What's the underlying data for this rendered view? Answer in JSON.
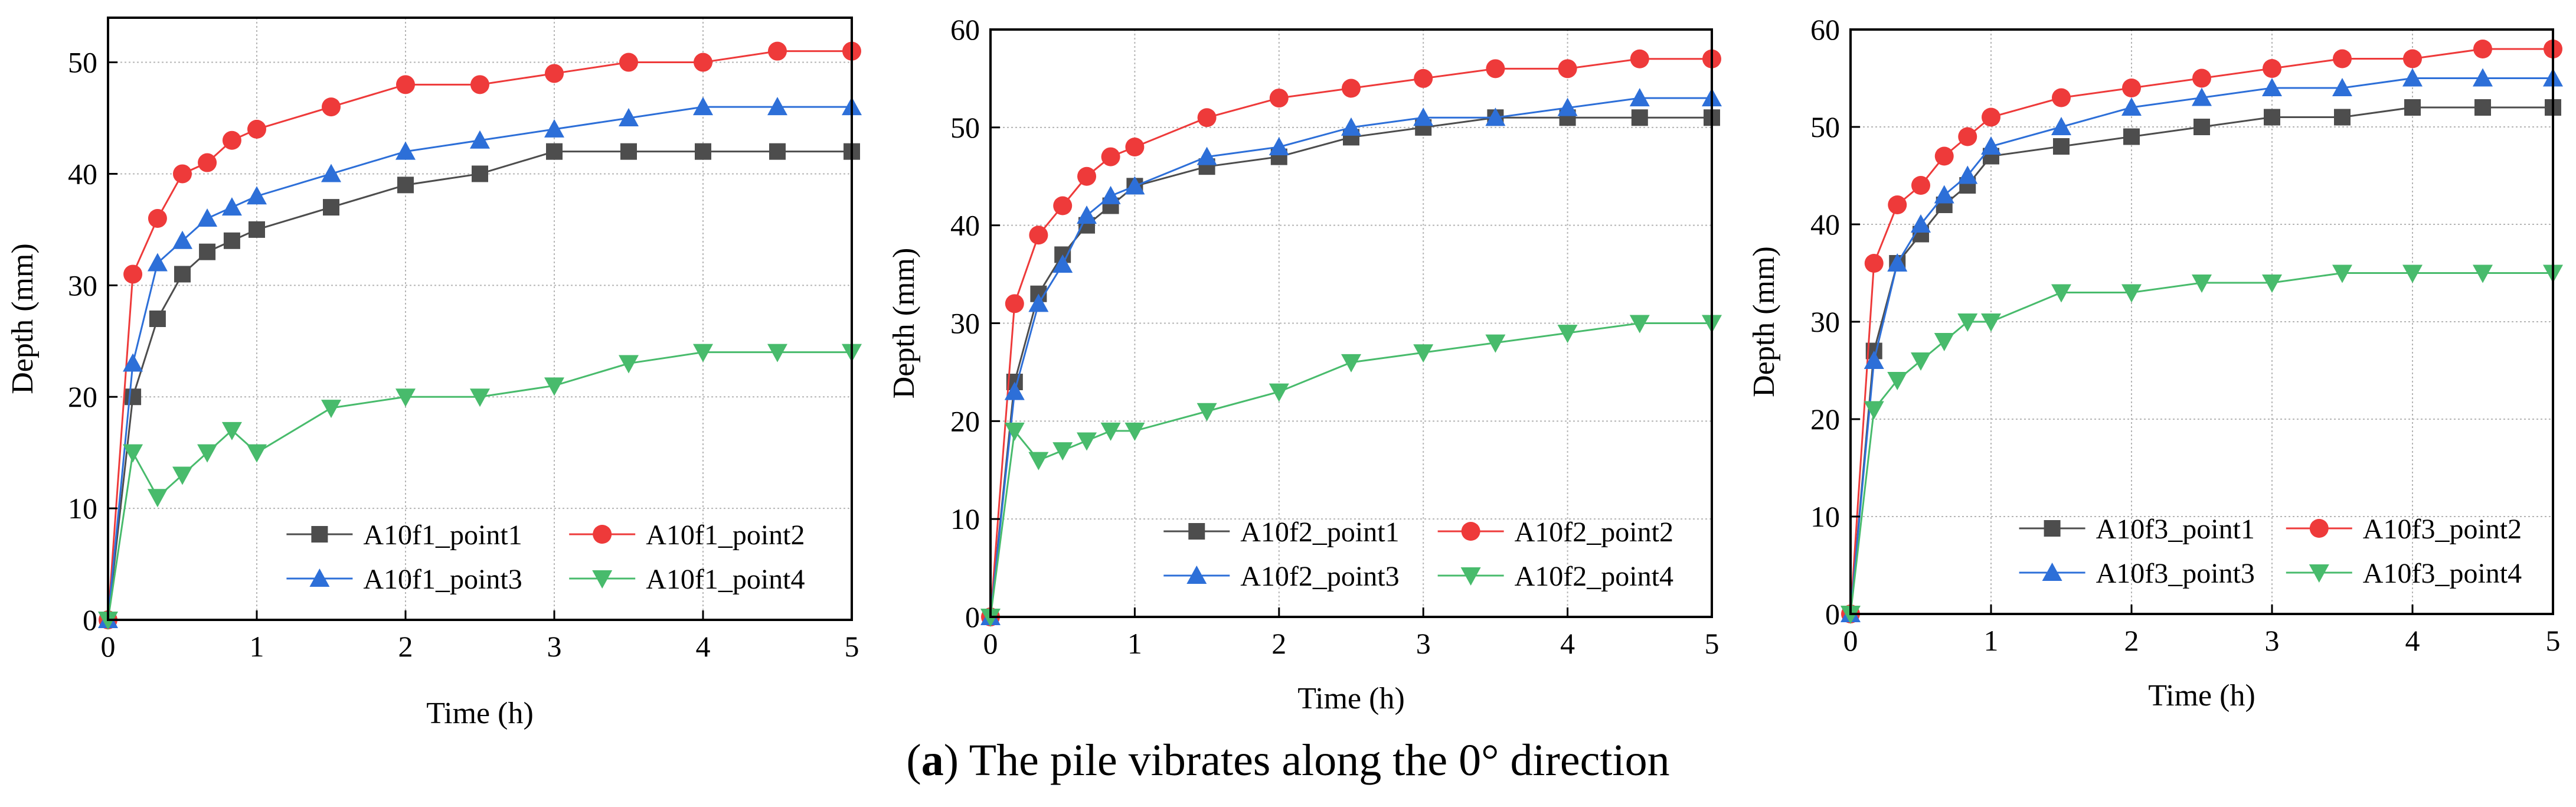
{
  "caption": {
    "label": "a",
    "text": "The pile vibrates along the 0° direction"
  },
  "colors": {
    "point1": "#4d4d4d",
    "point2": "#ee3a3a",
    "point3": "#2d6fd8",
    "point4": "#48bb6c"
  },
  "chart_data": [
    {
      "type": "line",
      "xlabel": "Time (h)",
      "ylabel": "Depth (mm)",
      "xlim": [
        0,
        5
      ],
      "ylim": [
        0,
        54
      ],
      "xticks": [
        0,
        1,
        2,
        3,
        4,
        5
      ],
      "yticks": [
        0,
        10,
        20,
        30,
        40,
        50
      ],
      "grid": true,
      "legend": "bottom-right",
      "series": [
        {
          "name": "A10f1_point1",
          "marker": "square",
          "x": [
            0,
            0.167,
            0.333,
            0.5,
            0.667,
            0.833,
            1,
            1.5,
            2,
            2.5,
            3,
            3.5,
            4,
            4.5,
            5
          ],
          "y": [
            0,
            20,
            27,
            31,
            33,
            34,
            35,
            37,
            39,
            40,
            42,
            42,
            42,
            42,
            42
          ]
        },
        {
          "name": "A10f1_point2",
          "marker": "circle",
          "x": [
            0,
            0.167,
            0.333,
            0.5,
            0.667,
            0.833,
            1,
            1.5,
            2,
            2.5,
            3,
            3.5,
            4,
            4.5,
            5
          ],
          "y": [
            0,
            31,
            36,
            40,
            41,
            43,
            44,
            46,
            48,
            48,
            49,
            50,
            50,
            51,
            51
          ]
        },
        {
          "name": "A10f1_point3",
          "marker": "triangle-up",
          "x": [
            0,
            0.167,
            0.333,
            0.5,
            0.667,
            0.833,
            1,
            1.5,
            2,
            2.5,
            3,
            3.5,
            4,
            4.5,
            5
          ],
          "y": [
            0,
            23,
            32,
            34,
            36,
            37,
            38,
            40,
            42,
            43,
            44,
            45,
            46,
            46,
            46
          ]
        },
        {
          "name": "A10f1_point4",
          "marker": "triangle-down",
          "x": [
            0,
            0.167,
            0.333,
            0.5,
            0.667,
            0.833,
            1,
            1.5,
            2,
            2.5,
            3,
            3.5,
            4,
            4.5,
            5
          ],
          "y": [
            0,
            15,
            11,
            13,
            15,
            17,
            15,
            19,
            20,
            20,
            21,
            23,
            24,
            24,
            24
          ]
        }
      ]
    },
    {
      "type": "line",
      "xlabel": "Time (h)",
      "ylabel": "Depth (mm)",
      "xlim": [
        0,
        5
      ],
      "ylim": [
        0,
        60
      ],
      "xticks": [
        0,
        1,
        2,
        3,
        4,
        5
      ],
      "yticks": [
        0,
        10,
        20,
        30,
        40,
        50,
        60
      ],
      "grid": true,
      "legend": "bottom-right",
      "series": [
        {
          "name": "A10f2_point1",
          "marker": "square",
          "x": [
            0,
            0.167,
            0.333,
            0.5,
            0.667,
            0.833,
            1,
            1.5,
            2,
            2.5,
            3,
            3.5,
            4,
            4.5,
            5
          ],
          "y": [
            0,
            24,
            33,
            37,
            40,
            42,
            44,
            46,
            47,
            49,
            50,
            51,
            51,
            51,
            51
          ]
        },
        {
          "name": "A10f2_point2",
          "marker": "circle",
          "x": [
            0,
            0.167,
            0.333,
            0.5,
            0.667,
            0.833,
            1,
            1.5,
            2,
            2.5,
            3,
            3.5,
            4,
            4.5,
            5
          ],
          "y": [
            0,
            32,
            39,
            42,
            45,
            47,
            48,
            51,
            53,
            54,
            55,
            56,
            56,
            57,
            57
          ]
        },
        {
          "name": "A10f2_point3",
          "marker": "triangle-up",
          "x": [
            0,
            0.167,
            0.333,
            0.5,
            0.667,
            0.833,
            1,
            1.5,
            2,
            2.5,
            3,
            3.5,
            4,
            4.5,
            5
          ],
          "y": [
            0,
            23,
            32,
            36,
            41,
            43,
            44,
            47,
            48,
            50,
            51,
            51,
            52,
            53,
            53
          ]
        },
        {
          "name": "A10f2_point4",
          "marker": "triangle-down",
          "x": [
            0,
            0.167,
            0.333,
            0.5,
            0.667,
            0.833,
            1,
            1.5,
            2,
            2.5,
            3,
            3.5,
            4,
            4.5,
            5
          ],
          "y": [
            0,
            19,
            16,
            17,
            18,
            19,
            19,
            21,
            23,
            26,
            27,
            28,
            29,
            30,
            30
          ]
        }
      ]
    },
    {
      "type": "line",
      "xlabel": "Time (h)",
      "ylabel": "Depth (mm)",
      "xlim": [
        0,
        5
      ],
      "ylim": [
        0,
        60
      ],
      "xticks": [
        0,
        1,
        2,
        3,
        4,
        5
      ],
      "yticks": [
        0,
        10,
        20,
        30,
        40,
        50,
        60
      ],
      "grid": true,
      "legend": "bottom-right",
      "series": [
        {
          "name": "A10f3_point1",
          "marker": "square",
          "x": [
            0,
            0.167,
            0.333,
            0.5,
            0.667,
            0.833,
            1,
            1.5,
            2,
            2.5,
            3,
            3.5,
            4,
            4.5,
            5
          ],
          "y": [
            0,
            27,
            36,
            39,
            42,
            44,
            47,
            48,
            49,
            50,
            51,
            51,
            52,
            52,
            52
          ]
        },
        {
          "name": "A10f3_point2",
          "marker": "circle",
          "x": [
            0,
            0.167,
            0.333,
            0.5,
            0.667,
            0.833,
            1,
            1.5,
            2,
            2.5,
            3,
            3.5,
            4,
            4.5,
            5
          ],
          "y": [
            0,
            36,
            42,
            44,
            47,
            49,
            51,
            53,
            54,
            55,
            56,
            57,
            57,
            58,
            58
          ]
        },
        {
          "name": "A10f3_point3",
          "marker": "triangle-up",
          "x": [
            0,
            0.167,
            0.333,
            0.5,
            0.667,
            0.833,
            1,
            1.5,
            2,
            2.5,
            3,
            3.5,
            4,
            4.5,
            5
          ],
          "y": [
            0,
            26,
            36,
            40,
            43,
            45,
            48,
            50,
            52,
            53,
            54,
            54,
            55,
            55,
            55
          ]
        },
        {
          "name": "A10f3_point4",
          "marker": "triangle-down",
          "x": [
            0,
            0.167,
            0.333,
            0.5,
            0.667,
            0.833,
            1,
            1.5,
            2,
            2.5,
            3,
            3.5,
            4,
            4.5,
            5
          ],
          "y": [
            0,
            21,
            24,
            26,
            28,
            30,
            30,
            33,
            33,
            34,
            34,
            35,
            35,
            35,
            35
          ]
        }
      ]
    }
  ]
}
